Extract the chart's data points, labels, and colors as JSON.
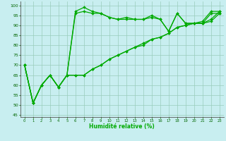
{
  "xlabel": "Humidité relative (%)",
  "xlim": [
    -0.5,
    23.5
  ],
  "ylim": [
    44,
    102
  ],
  "yticks": [
    45,
    50,
    55,
    60,
    65,
    70,
    75,
    80,
    85,
    90,
    95,
    100
  ],
  "xticks": [
    0,
    1,
    2,
    3,
    4,
    5,
    6,
    7,
    8,
    9,
    10,
    11,
    12,
    13,
    14,
    15,
    16,
    17,
    18,
    19,
    20,
    21,
    22,
    23
  ],
  "bg_color": "#c8eef0",
  "grid_color": "#99ccbb",
  "line_color": "#00aa00",
  "marker": "D",
  "markersize": 2.0,
  "linewidth": 0.9,
  "series": [
    [
      70,
      51,
      60,
      65,
      59,
      65,
      97,
      99,
      97,
      96,
      94,
      93,
      94,
      93,
      93,
      95,
      93,
      87,
      96,
      91,
      91,
      92,
      97,
      97
    ],
    [
      70,
      51,
      60,
      65,
      59,
      65,
      96,
      97,
      96,
      96,
      94,
      93,
      93,
      93,
      93,
      94,
      93,
      87,
      96,
      91,
      91,
      91,
      96,
      96
    ],
    [
      70,
      51,
      60,
      65,
      59,
      65,
      65,
      65,
      68,
      70,
      73,
      75,
      77,
      79,
      81,
      83,
      84,
      86,
      89,
      90,
      91,
      91,
      93,
      97
    ],
    [
      70,
      51,
      60,
      65,
      59,
      65,
      65,
      65,
      68,
      70,
      73,
      75,
      77,
      79,
      80,
      83,
      84,
      86,
      89,
      90,
      91,
      91,
      92,
      96
    ]
  ]
}
